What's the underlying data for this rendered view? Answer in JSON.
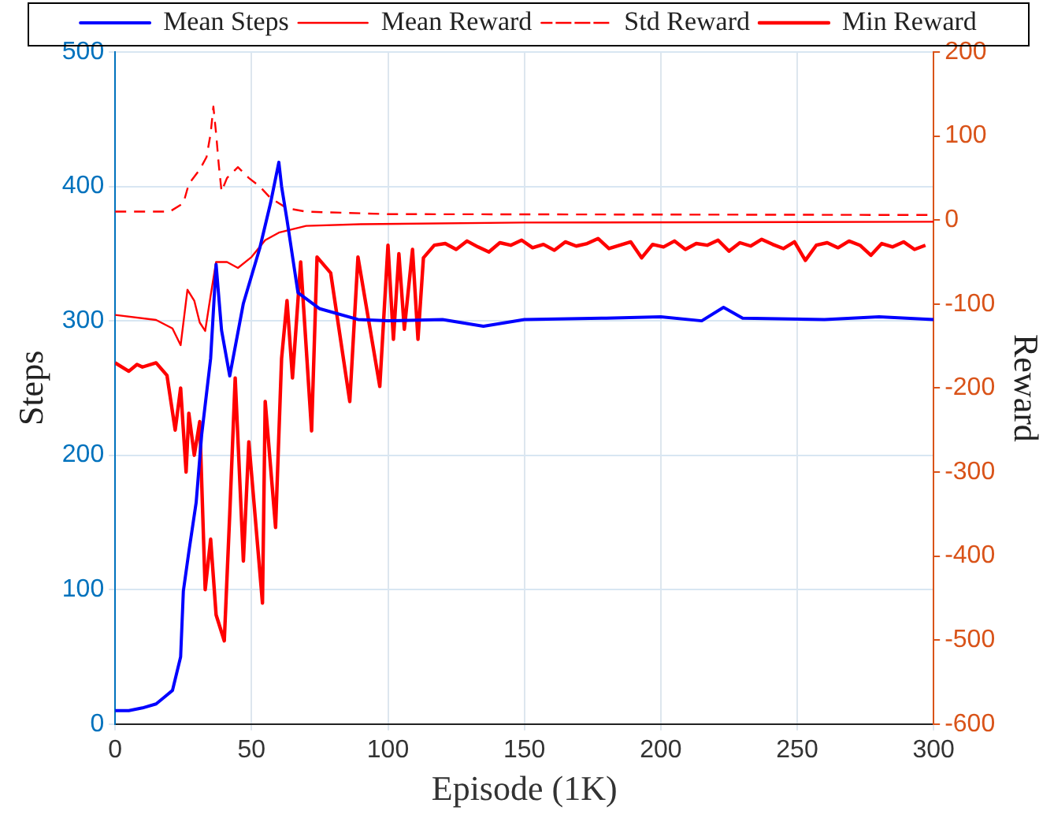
{
  "chart_data": {
    "type": "line",
    "xlabel": "Episode (1K)",
    "ylabel": "Steps",
    "y2label": "Reward",
    "xlim": [
      0,
      300
    ],
    "xticks": [
      0,
      50,
      100,
      150,
      200,
      250,
      300
    ],
    "ylim": [
      0,
      500
    ],
    "yticks": [
      0,
      100,
      200,
      300,
      400,
      500
    ],
    "y2lim": [
      -600,
      200
    ],
    "y2ticks": [
      -600,
      -500,
      -400,
      -300,
      -200,
      -100,
      0,
      100,
      200
    ],
    "grid": true,
    "legend": "top",
    "marker": "none",
    "series": [
      {
        "name": "Mean Steps",
        "color": "#0000ff",
        "line_style": "solid",
        "x": [
          0,
          5,
          10,
          15,
          18,
          21,
          24,
          25,
          27,
          29.7,
          31.7,
          35,
          37,
          39,
          42,
          47,
          53,
          57,
          60,
          61,
          63,
          67,
          75,
          89,
          100,
          120,
          135,
          150,
          180,
          200,
          215,
          223,
          230,
          260,
          280,
          300
        ],
        "values": [
          10,
          10,
          12,
          15,
          20,
          25,
          50,
          99,
          128,
          165,
          215,
          272,
          342,
          293,
          259,
          313,
          354,
          388,
          418,
          400,
          375,
          321,
          309,
          301,
          300,
          301,
          296,
          301,
          302,
          303,
          300,
          310,
          302,
          301,
          303,
          301
        ]
      },
      {
        "name": "Mean Reward",
        "color": "#ff0000",
        "axis": "y2",
        "line_style": "solid",
        "x": [
          0,
          15,
          21,
          24,
          26.5,
          29,
          31,
          33,
          35,
          37,
          41,
          45,
          50,
          55,
          60,
          70,
          90,
          150,
          300
        ],
        "values": [
          -113,
          -119,
          -129,
          -149,
          -83,
          -96,
          -122,
          -132,
          -90,
          -50,
          -50,
          -57,
          -44,
          -24,
          -15,
          -7,
          -5,
          -3,
          -2
        ]
      },
      {
        "name": "Std Reward",
        "color": "#ff0000",
        "axis": "y2",
        "line_style": "dashed",
        "x": [
          0,
          20,
          25,
          27,
          31,
          33.5,
          35,
          36,
          37,
          38,
          39,
          41,
          45,
          49,
          53,
          57,
          63,
          70,
          100,
          300
        ],
        "values": [
          10,
          10,
          20,
          43,
          60,
          75,
          103,
          135,
          103,
          65,
          34,
          50,
          63,
          50,
          40,
          26,
          14,
          10,
          7,
          6
        ]
      },
      {
        "name": "Min Reward",
        "color": "#ff0000",
        "axis": "y2",
        "line_style": "solid",
        "x": [
          0,
          5,
          8,
          10,
          15,
          19,
          22,
          24,
          26,
          27,
          29,
          31,
          33,
          35,
          37,
          40,
          42,
          44,
          47,
          49,
          54,
          55,
          58.8,
          61,
          63,
          65,
          68,
          72,
          74,
          79,
          86,
          89,
          97,
          100,
          102,
          104,
          106,
          109,
          111,
          113,
          117,
          121,
          125,
          129,
          133,
          137,
          141,
          145,
          149,
          153,
          157,
          161,
          165,
          169,
          173,
          177,
          181,
          185,
          189,
          193,
          197,
          201,
          205,
          209,
          213,
          217,
          221,
          225,
          229,
          233,
          237,
          241,
          245,
          249,
          253,
          257,
          261,
          265,
          269,
          273,
          277,
          281,
          285,
          289,
          293,
          297
        ],
        "values": [
          -170,
          -180,
          -172,
          -175,
          -170,
          -185,
          -250,
          -200,
          -300,
          -230,
          -280,
          -240,
          -440,
          -380,
          -470,
          -501,
          -350,
          -188,
          -406,
          -264,
          -456,
          -216,
          -366,
          -165,
          -96,
          -188,
          -50,
          -251,
          -44,
          -63,
          -216,
          -44,
          -198,
          -30,
          -142,
          -40,
          -130,
          -35,
          -142,
          -45,
          -30,
          -28,
          -35,
          -25,
          -32,
          -38,
          -27,
          -30,
          -24,
          -33,
          -29,
          -36,
          -26,
          -31,
          -28,
          -22,
          -34,
          -30,
          -26,
          -45,
          -29,
          -32,
          -25,
          -35,
          -28,
          -30,
          -24,
          -37,
          -27,
          -31,
          -23,
          -29,
          -34,
          -26,
          -48,
          -30,
          -27,
          -33,
          -25,
          -30,
          -42,
          -28,
          -32,
          -26,
          -35,
          -30
        ]
      }
    ]
  }
}
